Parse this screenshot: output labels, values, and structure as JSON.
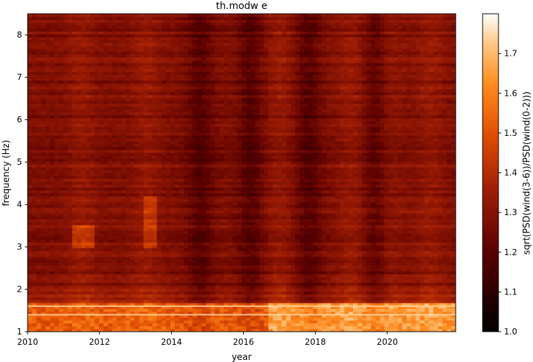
{
  "chart_data": {
    "type": "heatmap",
    "title": "th.modw e",
    "xlabel": "year",
    "ylabel": "frequency (Hz)",
    "xlim": [
      2010.0,
      2021.9
    ],
    "ylim": [
      1.0,
      8.5
    ],
    "x_ticks": [
      "2010",
      "2012",
      "2014",
      "2016",
      "2018",
      "2020"
    ],
    "y_ticks": [
      "1",
      "2",
      "3",
      "4",
      "5",
      "6",
      "7",
      "8"
    ],
    "colorbar": {
      "label": "sqrt(PSD(wind(3-6))/PSD(wind(0-2)))",
      "range": [
        1.0,
        1.8
      ],
      "ticks": [
        "1.0",
        "1.1",
        "1.2",
        "1.3",
        "1.4",
        "1.5",
        "1.6",
        "1.7"
      ],
      "colormap": "gist_heat"
    },
    "colors": {
      "frame": "#000000",
      "background": "#ffffff"
    },
    "value_summary": {
      "baseline_level": 1.28,
      "low_frequency_band_hz": [
        1.0,
        1.7
      ],
      "low_frequency_band_level": 1.6,
      "bright_line_hz": [
        1.6,
        1.4
      ],
      "dark_columns_year": [
        2014.8,
        2016.2,
        2017.8,
        2019.7
      ],
      "bright_columns_year": [
        2011.5,
        2013.3,
        2017.0,
        2019.0,
        2020.0,
        2021.2
      ]
    }
  }
}
